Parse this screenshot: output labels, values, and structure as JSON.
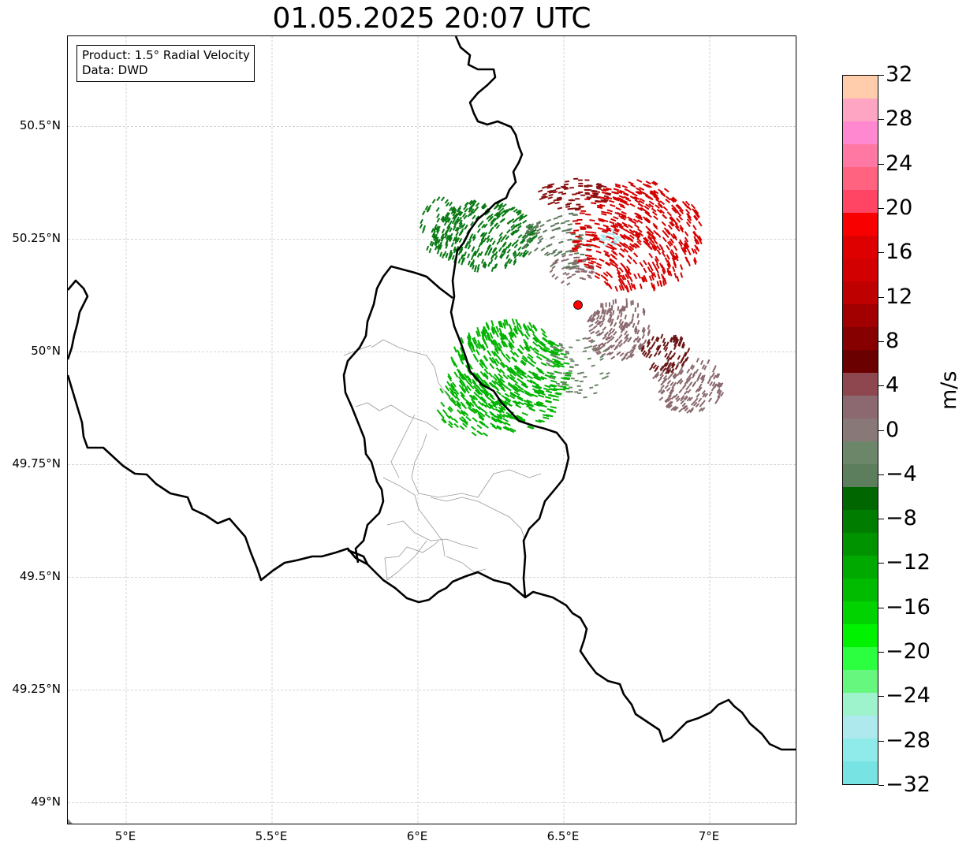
{
  "title": "01.05.2025 20:07 UTC",
  "info_box": {
    "product": "Product: 1.5° Radial Velocity",
    "data": "Data: DWD"
  },
  "map": {
    "lon_range": [
      4.8,
      7.3
    ],
    "lat_range": [
      48.95,
      50.7
    ],
    "grid": true,
    "y_ticks": [
      {
        "label": "50.5°N",
        "lat": 50.5
      },
      {
        "label": "50.25°N",
        "lat": 50.25
      },
      {
        "label": "50°N",
        "lat": 50.0
      },
      {
        "label": "49.75°N",
        "lat": 49.75
      },
      {
        "label": "49.5°N",
        "lat": 49.5
      },
      {
        "label": "49.25°N",
        "lat": 49.25
      },
      {
        "label": "49°N",
        "lat": 49.0
      }
    ],
    "x_ticks": [
      {
        "label": "5°E",
        "lon": 5.0
      },
      {
        "label": "5.5°E",
        "lon": 5.5
      },
      {
        "label": "6°E",
        "lon": 6.0
      },
      {
        "label": "6.5°E",
        "lon": 6.5
      },
      {
        "label": "7°E",
        "lon": 7.0
      }
    ],
    "radar_site": {
      "lon": 6.55,
      "lat": 50.11,
      "color": "#ff0000"
    },
    "border_color": "#000000",
    "region_border_color": "#999999"
  },
  "colorbar": {
    "unit": "m/s",
    "range": [
      -32,
      32
    ],
    "colors": [
      "#77e3e3",
      "#8feaea",
      "#aee9ee",
      "#9ef3cc",
      "#66f77f",
      "#2cff3f",
      "#00f200",
      "#00d300",
      "#00bb00",
      "#00a900",
      "#009300",
      "#007d00",
      "#006600",
      "#5d7e5d",
      "#6c8669",
      "#897878",
      "#8c6870",
      "#8e474e",
      "#6b0000",
      "#870000",
      "#a20000",
      "#bf0000",
      "#d20000",
      "#de0000",
      "#f80000",
      "#ff4563",
      "#ff6380",
      "#ff78a4",
      "#ff88d0",
      "#ffa5c4",
      "#ffccac"
    ],
    "tick_labels": [
      {
        "label": "−32",
        "value": -32
      },
      {
        "label": "−28",
        "value": -28
      },
      {
        "label": "−24",
        "value": -24
      },
      {
        "label": "−20",
        "value": -20
      },
      {
        "label": "−16",
        "value": -16
      },
      {
        "label": "−12",
        "value": -12
      },
      {
        "label": "−8",
        "value": -8
      },
      {
        "label": "−4",
        "value": -4
      },
      {
        "label": "0",
        "value": 0
      },
      {
        "label": "4",
        "value": 4
      },
      {
        "label": "8",
        "value": 8
      },
      {
        "label": "12",
        "value": 12
      },
      {
        "label": "16",
        "value": 16
      },
      {
        "label": "20",
        "value": 20
      },
      {
        "label": "24",
        "value": 24
      },
      {
        "label": "28",
        "value": 28
      },
      {
        "label": "32",
        "value": 32
      }
    ]
  },
  "velocity_regions": [
    {
      "name": "inbound",
      "color": "#00b400",
      "color_dark": "#0a7a14"
    },
    {
      "name": "near-zero",
      "color": "#8a6a6e"
    },
    {
      "name": "outbound",
      "color": "#d40000"
    },
    {
      "name": "high-outbound",
      "color": "#a8e8ee"
    }
  ]
}
